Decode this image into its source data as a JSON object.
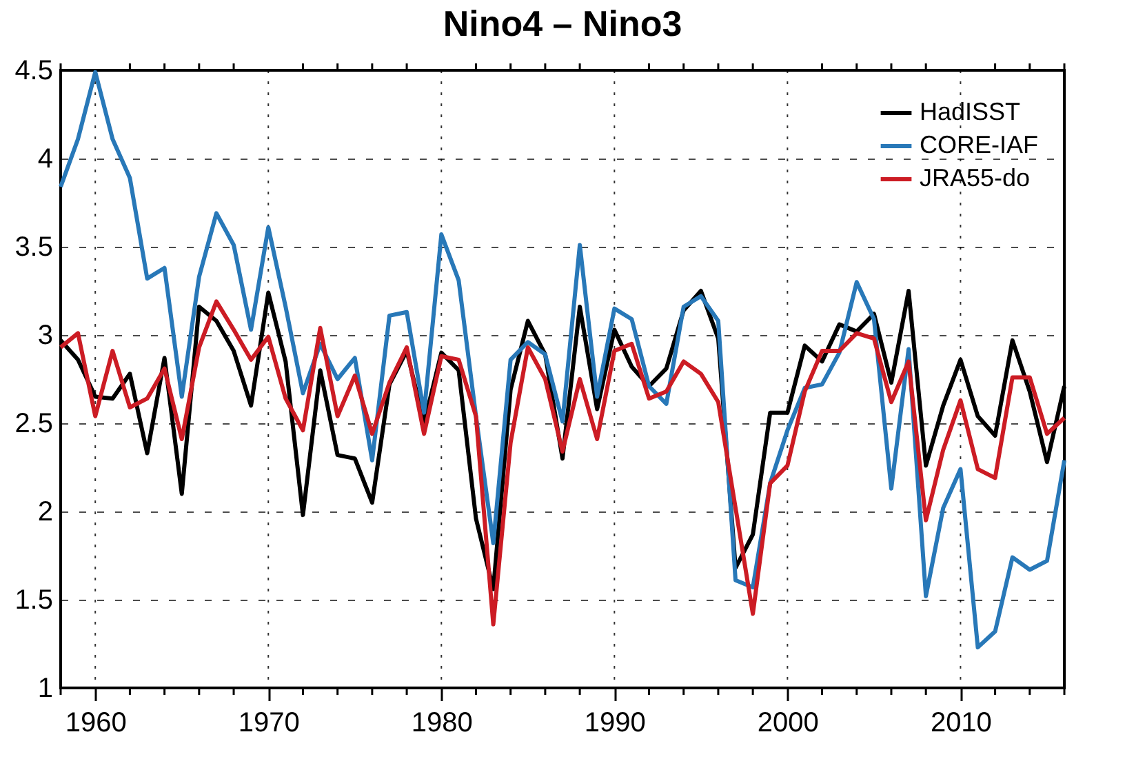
{
  "chart_data": {
    "type": "line",
    "title": "Nino4 – Nino3",
    "x": [
      1958,
      1959,
      1960,
      1961,
      1962,
      1963,
      1964,
      1965,
      1966,
      1967,
      1968,
      1969,
      1970,
      1971,
      1972,
      1973,
      1974,
      1975,
      1976,
      1977,
      1978,
      1979,
      1980,
      1981,
      1982,
      1983,
      1984,
      1985,
      1986,
      1987,
      1988,
      1989,
      1990,
      1991,
      1992,
      1993,
      1994,
      1995,
      1996,
      1997,
      1998,
      1999,
      2000,
      2001,
      2002,
      2003,
      2004,
      2005,
      2006,
      2007,
      2008,
      2009,
      2010,
      2011,
      2012,
      2013,
      2014,
      2015,
      2016
    ],
    "series": [
      {
        "name": "HadISST",
        "color": "#000000",
        "values": [
          2.97,
          2.86,
          2.65,
          2.64,
          2.78,
          2.33,
          2.87,
          2.1,
          3.16,
          3.08,
          2.91,
          2.6,
          3.24,
          2.85,
          1.98,
          2.8,
          2.32,
          2.3,
          2.05,
          2.72,
          2.91,
          2.5,
          2.9,
          2.8,
          1.96,
          1.56,
          2.69,
          3.08,
          2.89,
          2.3,
          3.16,
          2.58,
          3.03,
          2.82,
          2.71,
          2.81,
          3.14,
          3.25,
          2.98,
          1.68,
          1.87,
          2.56,
          2.56,
          2.94,
          2.85,
          3.06,
          3.02,
          3.12,
          2.73,
          3.25,
          2.26,
          2.6,
          2.86,
          2.54,
          2.43,
          2.97,
          2.68,
          2.28,
          2.71
        ]
      },
      {
        "name": "CORE-IAF",
        "color": "#2878b8",
        "values": [
          3.84,
          4.11,
          4.49,
          4.11,
          3.89,
          3.32,
          3.38,
          2.65,
          3.33,
          3.69,
          3.51,
          3.03,
          3.61,
          3.16,
          2.67,
          2.95,
          2.75,
          2.87,
          2.29,
          3.11,
          3.13,
          2.56,
          3.57,
          3.31,
          2.54,
          1.82,
          2.86,
          2.96,
          2.89,
          2.51,
          3.51,
          2.65,
          3.15,
          3.09,
          2.71,
          2.61,
          3.16,
          3.22,
          3.08,
          1.61,
          1.57,
          2.16,
          2.46,
          2.7,
          2.72,
          2.9,
          3.3,
          3.09,
          2.13,
          2.92,
          1.52,
          2.02,
          2.24,
          1.23,
          1.32,
          1.74,
          1.67,
          1.72,
          2.29
        ]
      },
      {
        "name": "JRA55-do",
        "color": "#cc1c24",
        "values": [
          2.93,
          3.01,
          2.54,
          2.91,
          2.59,
          2.64,
          2.81,
          2.41,
          2.93,
          3.19,
          3.03,
          2.86,
          2.99,
          2.64,
          2.46,
          3.04,
          2.54,
          2.77,
          2.44,
          2.73,
          2.93,
          2.44,
          2.88,
          2.86,
          2.54,
          1.36,
          2.39,
          2.93,
          2.75,
          2.34,
          2.75,
          2.41,
          2.91,
          2.95,
          2.64,
          2.68,
          2.85,
          2.78,
          2.62,
          2.02,
          1.42,
          2.16,
          2.26,
          2.68,
          2.91,
          2.91,
          3.01,
          2.98,
          2.62,
          2.85,
          1.95,
          2.35,
          2.63,
          2.24,
          2.19,
          2.76,
          2.76,
          2.44,
          2.53
        ]
      }
    ],
    "xlim": [
      1958,
      2016
    ],
    "xticks": [
      {
        "value": 1958,
        "label": null
      },
      1960,
      {
        "value": 1962,
        "label": null
      },
      {
        "value": 1964,
        "label": null
      },
      {
        "value": 1966,
        "label": null
      },
      {
        "value": 1968,
        "label": null
      },
      1970,
      {
        "value": 1972,
        "label": null
      },
      {
        "value": 1974,
        "label": null
      },
      {
        "value": 1976,
        "label": null
      },
      {
        "value": 1978,
        "label": null
      },
      1980,
      {
        "value": 1982,
        "label": null
      },
      {
        "value": 1984,
        "label": null
      },
      {
        "value": 1986,
        "label": null
      },
      {
        "value": 1988,
        "label": null
      },
      1990,
      {
        "value": 1992,
        "label": null
      },
      {
        "value": 1994,
        "label": null
      },
      {
        "value": 1996,
        "label": null
      },
      {
        "value": 1998,
        "label": null
      },
      2000,
      {
        "value": 2002,
        "label": null
      },
      {
        "value": 2004,
        "label": null
      },
      {
        "value": 2006,
        "label": null
      },
      {
        "value": 2008,
        "label": null
      },
      2010,
      {
        "value": 2012,
        "label": null
      },
      {
        "value": 2014,
        "label": null
      },
      {
        "value": 2016,
        "label": null
      }
    ],
    "ylim": [
      1,
      4.5
    ],
    "yticks": [
      1,
      1.5,
      2,
      2.5,
      3,
      3.5,
      4,
      4.5
    ],
    "grid": true,
    "legend": "top right",
    "marker": "none",
    "line_style": "solid"
  }
}
